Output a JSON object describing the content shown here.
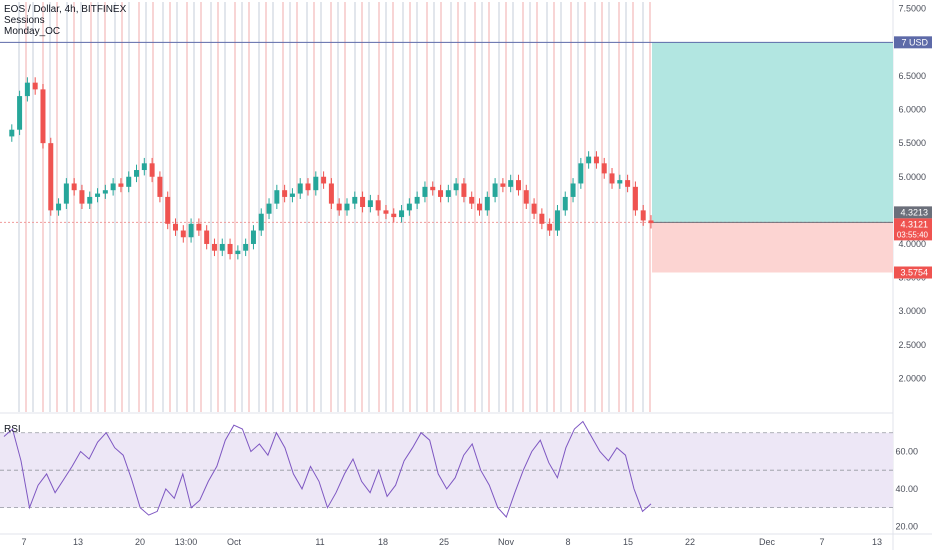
{
  "legend": {
    "symbol": "EOS / Dollar, 4h, BITFINEX",
    "indicator_1": "Sessions",
    "indicator_2": "Monday_OC"
  },
  "rsi_label": "RSI",
  "colors": {
    "up": "#26a69a",
    "down": "#ef5350",
    "profit_zone": "#b2e6e1",
    "loss_zone": "#fcd4d2",
    "rsi_line": "#7e57c2",
    "rsi_band": "#ede7f6",
    "session_line": "#d9dde6",
    "session_line_red": "#f5c7c7",
    "target_line": "#5d6aa8",
    "price_tag": "#ef5350",
    "axis_text": "#4a4e59"
  },
  "chart_data": [
    {
      "type": "candlestick",
      "ylim": [
        1.5,
        7.6
      ],
      "y_ticks": [
        "7.5000",
        "7.0000",
        "6.5000",
        "6.0000",
        "5.5000",
        "5.0000",
        "4.5000",
        "4.0000",
        "3.5000",
        "3.0000",
        "2.5000",
        "2.0000"
      ],
      "x_ticks": [
        "7",
        "13",
        "20",
        "13:00",
        "Oct",
        "11",
        "18",
        "25",
        "Nov",
        "8",
        "15",
        "22",
        "Dec",
        "7",
        "13"
      ],
      "price_series": [
        5.6,
        5.7,
        6.2,
        6.4,
        6.3,
        5.5,
        4.5,
        4.6,
        4.9,
        4.8,
        4.6,
        4.7,
        4.75,
        4.8,
        4.9,
        4.85,
        5.0,
        5.1,
        5.2,
        5.0,
        4.7,
        4.3,
        4.2,
        4.1,
        4.3,
        4.2,
        4.0,
        3.9,
        4.0,
        3.85,
        3.9,
        4.0,
        4.2,
        4.45,
        4.6,
        4.8,
        4.7,
        4.75,
        4.9,
        4.8,
        5.0,
        4.9,
        4.6,
        4.5,
        4.6,
        4.7,
        4.55,
        4.65,
        4.5,
        4.45,
        4.4,
        4.5,
        4.6,
        4.7,
        4.85,
        4.8,
        4.7,
        4.8,
        4.9,
        4.7,
        4.6,
        4.5,
        4.7,
        4.9,
        4.85,
        4.95,
        4.8,
        4.6,
        4.45,
        4.3,
        4.2,
        4.5,
        4.7,
        4.9,
        5.2,
        5.3,
        5.2,
        5.05,
        4.9,
        4.95,
        4.85,
        4.5,
        4.35,
        4.31
      ],
      "target_price": "7",
      "stop_price": "3.5754",
      "entry_price": "4.3213",
      "current_price": "4.3121",
      "countdown": "03:55:40",
      "currency": "USD"
    },
    {
      "type": "line",
      "name": "RSI",
      "ylim": [
        17,
        80
      ],
      "y_ticks": [
        "60.00",
        "40.00",
        "20.00"
      ],
      "levels": [
        70,
        50,
        30
      ],
      "values": [
        68,
        72,
        55,
        30,
        42,
        48,
        38,
        45,
        52,
        60,
        56,
        65,
        70,
        62,
        58,
        45,
        30,
        26,
        28,
        40,
        35,
        48,
        30,
        34,
        44,
        52,
        66,
        74,
        72,
        60,
        64,
        58,
        70,
        62,
        48,
        40,
        52,
        44,
        30,
        38,
        48,
        56,
        44,
        38,
        50,
        36,
        42,
        55,
        62,
        70,
        66,
        48,
        40,
        46,
        58,
        64,
        50,
        42,
        30,
        25,
        38,
        50,
        60,
        66,
        54,
        46,
        62,
        72,
        76,
        68,
        60,
        55,
        62,
        58,
        40,
        28,
        32
      ]
    }
  ]
}
